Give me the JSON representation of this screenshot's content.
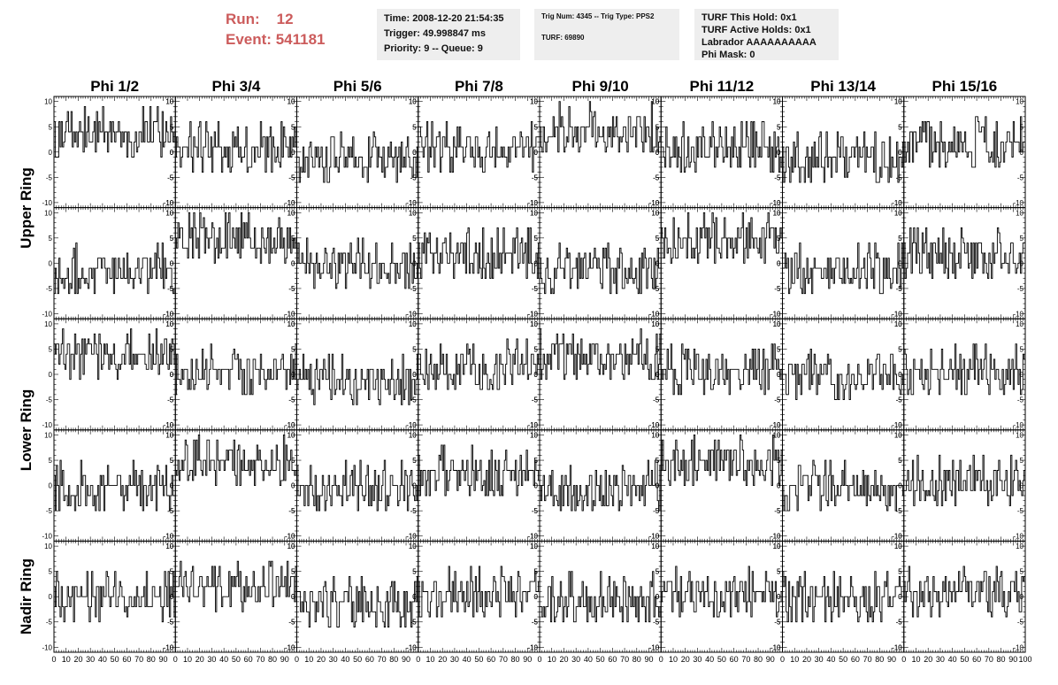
{
  "header": {
    "run_label": "Run:",
    "run_value": "12",
    "event_label": "Event:",
    "event_value": "541181"
  },
  "info_panels": {
    "time": "Time: 2008-12-20 21:54:35",
    "trigger": "Trigger: 49.998847 ms",
    "priority": "Priority: 9 -- Queue: 9",
    "trig_num": "Trig Num: 4345 -- Trig Type: PPS2",
    "turf": "TURF: 69890",
    "turf_this_hold": "TURF This Hold: 0x1",
    "turf_active_holds": "TURF Active Holds: 0x1",
    "labrador": "Labrador AAAAAAAAAA",
    "phi_mask": "Phi Mask: 0"
  },
  "columns": [
    "Phi 1/2",
    "Phi 3/4",
    "Phi 5/6",
    "Phi 7/8",
    "Phi 9/10",
    "Phi 11/12",
    "Phi 13/14",
    "Phi 15/16"
  ],
  "ring_labels": [
    "Upper Ring",
    "Lower Ring",
    "Nadir Ring"
  ],
  "chart_data": {
    "type": "line",
    "rows": 5,
    "cols": 8,
    "xlim": [
      0,
      100
    ],
    "ylim": [
      -11,
      11
    ],
    "x_tick_labels": [
      "0",
      "10",
      "20",
      "30",
      "40",
      "50",
      "60",
      "70",
      "80",
      "90",
      "100"
    ],
    "y_tick_values": [
      -10,
      -5,
      0,
      5,
      10
    ],
    "line_color": "#000000",
    "panel_baselines": [
      [
        4,
        1,
        -1,
        1,
        5,
        1,
        -1,
        2
      ],
      [
        -1,
        5,
        0,
        2,
        -1,
        5,
        -1,
        2
      ],
      [
        4,
        1,
        -1,
        2,
        4,
        1,
        0,
        1
      ],
      [
        0,
        5,
        0,
        3,
        0,
        5,
        0,
        1
      ],
      [
        0,
        2,
        -1,
        1,
        0,
        1,
        0,
        1
      ]
    ]
  }
}
